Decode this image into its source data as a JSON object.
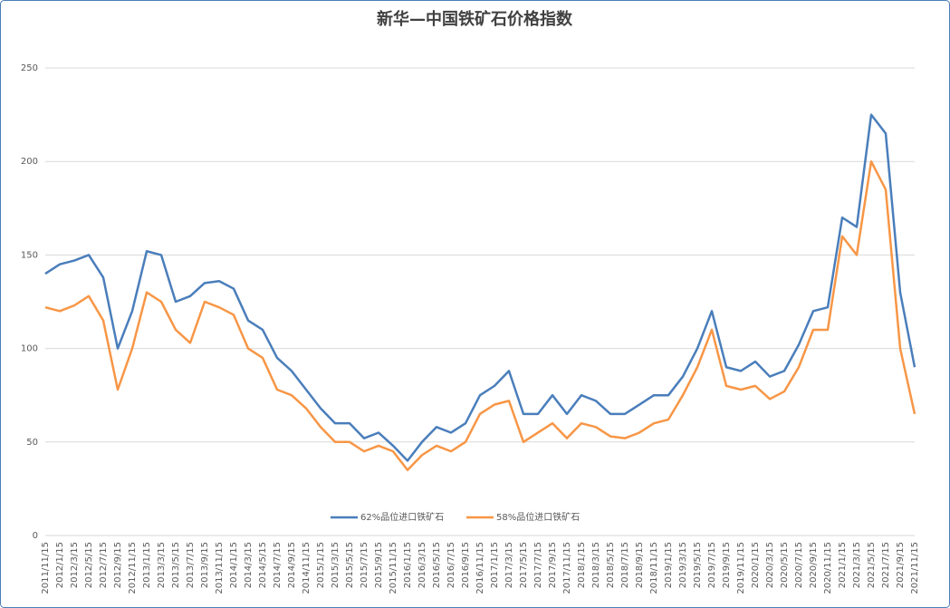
{
  "chart_data": {
    "type": "line",
    "title": "新华—中国铁矿石价格指数",
    "categories": [
      "2011/11/15",
      "2012/1/15",
      "2012/3/15",
      "2012/5/15",
      "2012/7/15",
      "2012/9/15",
      "2012/11/15",
      "2013/1/15",
      "2013/3/15",
      "2013/5/15",
      "2013/7/15",
      "2013/9/15",
      "2013/11/15",
      "2014/1/15",
      "2014/3/15",
      "2014/5/15",
      "2014/7/15",
      "2014/9/15",
      "2014/11/15",
      "2015/1/15",
      "2015/3/15",
      "2015/5/15",
      "2015/7/15",
      "2015/9/15",
      "2015/11/15",
      "2016/1/15",
      "2016/3/15",
      "2016/5/15",
      "2016/7/15",
      "2016/9/15",
      "2016/11/15",
      "2017/1/15",
      "2017/3/15",
      "2017/5/15",
      "2017/7/15",
      "2017/9/15",
      "2017/11/15",
      "2018/1/15",
      "2018/3/15",
      "2018/5/15",
      "2018/7/15",
      "2018/9/15",
      "2018/11/15",
      "2019/1/15",
      "2019/3/15",
      "2019/5/15",
      "2019/7/15",
      "2019/9/15",
      "2019/11/15",
      "2020/1/15",
      "2020/3/15",
      "2020/5/15",
      "2020/7/15",
      "2020/9/15",
      "2020/11/15",
      "2021/1/15",
      "2021/3/15",
      "2021/5/15",
      "2021/7/15",
      "2021/9/15",
      "2021/11/15"
    ],
    "series": [
      {
        "name": "62%品位进口铁矿石",
        "color": "#4a7ebb",
        "values": [
          140,
          145,
          147,
          150,
          138,
          100,
          120,
          152,
          150,
          125,
          128,
          135,
          136,
          132,
          115,
          110,
          95,
          88,
          78,
          68,
          60,
          60,
          52,
          55,
          48,
          40,
          50,
          58,
          55,
          60,
          75,
          80,
          88,
          65,
          65,
          75,
          65,
          75,
          72,
          65,
          65,
          70,
          75,
          75,
          85,
          100,
          120,
          90,
          88,
          93,
          85,
          88,
          102,
          120,
          122,
          170,
          165,
          225,
          215,
          130,
          90
        ]
      },
      {
        "name": "58%品位进口铁矿石",
        "color": "#f79646",
        "values": [
          122,
          120,
          123,
          128,
          115,
          78,
          100,
          130,
          125,
          110,
          103,
          125,
          122,
          118,
          100,
          95,
          78,
          75,
          68,
          58,
          50,
          50,
          45,
          48,
          45,
          35,
          43,
          48,
          45,
          50,
          65,
          70,
          72,
          50,
          55,
          60,
          52,
          60,
          58,
          53,
          52,
          55,
          60,
          62,
          75,
          90,
          110,
          80,
          78,
          80,
          73,
          77,
          90,
          110,
          110,
          160,
          150,
          200,
          185,
          100,
          65
        ]
      }
    ],
    "ylim": [
      0,
      250
    ],
    "yticks": [
      0,
      50,
      100,
      150,
      200,
      250
    ],
    "grid": true,
    "legend": "bottom"
  }
}
